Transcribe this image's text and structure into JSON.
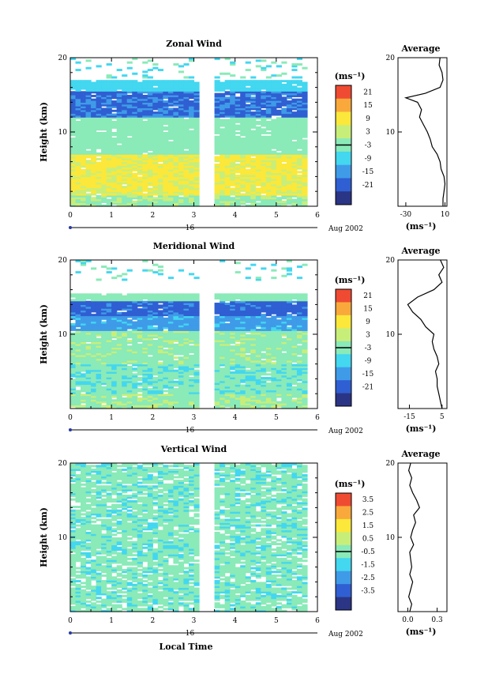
{
  "chart_data": [
    {
      "type": "heatmap",
      "title": "Zonal Wind",
      "ylabel": "Height (km)",
      "xlabel": "",
      "xlim": [
        0,
        6
      ],
      "ylim": [
        0,
        20
      ],
      "x_ticks": [
        "0",
        "1",
        "2",
        "3",
        "4",
        "5",
        "6"
      ],
      "y_ticks": [
        "10",
        "20"
      ],
      "day_label": "16",
      "date_label": "Aug 2002",
      "data_gap_hours": [
        3.13,
        3.47
      ],
      "data_end_hour": 5.67,
      "colorbar": {
        "unit": "(ms⁻¹)",
        "labels": [
          "21",
          "15",
          "9",
          "3",
          "-3",
          "-9",
          "-15",
          "-21"
        ]
      },
      "profile_bands": [
        {
          "from": 0,
          "to": 1.5,
          "value": 5
        },
        {
          "from": 1.5,
          "to": 7,
          "value": 13
        },
        {
          "from": 7,
          "to": 12,
          "value": 3
        },
        {
          "from": 12,
          "to": 15.5,
          "value": -13
        },
        {
          "from": 15.5,
          "to": 17,
          "value": -3
        },
        {
          "from": 17,
          "to": 20,
          "value": null
        }
      ],
      "average": {
        "title": "Average",
        "xlabel": "(ms⁻¹)",
        "xlim": [
          -38,
          12
        ],
        "x_ticks": [
          "-30",
          "10"
        ],
        "y_ticks": [
          "10",
          "20"
        ],
        "height_km": [
          0,
          1,
          2,
          3,
          4,
          5,
          6,
          7,
          8,
          9,
          10,
          11,
          12,
          13,
          14,
          14.6,
          15.2,
          16,
          17,
          18,
          19,
          20
        ],
        "wind_ms": [
          8,
          8,
          9,
          10,
          9,
          6,
          5,
          2,
          -3,
          -5,
          -8,
          -12,
          -16,
          -14,
          -18,
          -30,
          -10,
          5,
          8,
          7,
          4,
          5
        ]
      }
    },
    {
      "type": "heatmap",
      "title": "Meridional Wind",
      "ylabel": "Height (km)",
      "xlabel": "",
      "xlim": [
        0,
        6
      ],
      "ylim": [
        0,
        20
      ],
      "x_ticks": [
        "0",
        "1",
        "2",
        "3",
        "4",
        "5",
        "6"
      ],
      "y_ticks": [
        "10",
        "20"
      ],
      "day_label": "16",
      "date_label": "Aug 2002",
      "data_gap_hours": [
        3.13,
        3.47
      ],
      "data_end_hour": 5.67,
      "colorbar": {
        "unit": "(ms⁻¹)",
        "labels": [
          "21",
          "15",
          "9",
          "3",
          "-3",
          "-9",
          "-15",
          "-21"
        ]
      },
      "profile_bands": [
        {
          "from": 0,
          "to": 2,
          "value": 5
        },
        {
          "from": 2,
          "to": 6,
          "value": 1
        },
        {
          "from": 6,
          "to": 10.5,
          "value": 4
        },
        {
          "from": 10.5,
          "to": 12.5,
          "value": -8
        },
        {
          "from": 12.5,
          "to": 14.5,
          "value": -14
        },
        {
          "from": 14.5,
          "to": 15.5,
          "value": 3
        },
        {
          "from": 15.5,
          "to": 20,
          "value": null
        }
      ],
      "average": {
        "title": "Average",
        "xlabel": "(ms⁻¹)",
        "xlim": [
          -22,
          8
        ],
        "x_ticks": [
          "-15",
          "5"
        ],
        "y_ticks": [
          "10",
          "20"
        ],
        "height_km": [
          0,
          1,
          2,
          3,
          4,
          5,
          6,
          7,
          8,
          9,
          10,
          11,
          12,
          13,
          14,
          15,
          16,
          17,
          18,
          19,
          20
        ],
        "wind_ms": [
          5,
          4,
          3,
          2,
          2,
          1,
          3,
          2,
          0,
          -1,
          0,
          -5,
          -8,
          -13,
          -16,
          -10,
          0,
          5,
          3,
          6,
          4
        ]
      }
    },
    {
      "type": "heatmap",
      "title": "Vertical Wind",
      "ylabel": "Height (km)",
      "xlabel": "Local Time",
      "xlim": [
        0,
        6
      ],
      "ylim": [
        0,
        20
      ],
      "x_ticks": [
        "0",
        "1",
        "2",
        "3",
        "4",
        "5",
        "6"
      ],
      "y_ticks": [
        "10",
        "20"
      ],
      "day_label": "16",
      "date_label": "Aug 2002",
      "data_gap_hours": [
        3.13,
        3.47
      ],
      "data_end_hour": 5.67,
      "colorbar": {
        "unit": "(ms⁻¹)",
        "labels": [
          "3.5",
          "2.5",
          "1.5",
          "0.5",
          "-0.5",
          "-1.5",
          "-2.5",
          "-3.5"
        ]
      },
      "profile_bands": [
        {
          "from": 0,
          "to": 20,
          "value": 0
        }
      ],
      "average": {
        "title": "Average",
        "xlabel": "(ms⁻¹)",
        "xlim": [
          -0.1,
          0.4
        ],
        "x_ticks": [
          "0.0",
          "0.3"
        ],
        "y_ticks": [
          "10",
          "20"
        ],
        "height_km": [
          0,
          1,
          2,
          3,
          4,
          5,
          6,
          7,
          8,
          9,
          10,
          11,
          12,
          13,
          14,
          15,
          16,
          17,
          18,
          19,
          20
        ],
        "wind_ms": [
          0.02,
          0.04,
          0.01,
          0.03,
          0.05,
          0.02,
          0.04,
          0.03,
          0.02,
          0.06,
          0.03,
          0.05,
          0.08,
          0.06,
          0.12,
          0.09,
          0.05,
          0.02,
          0.04,
          0.01,
          0.03
        ]
      }
    }
  ],
  "colors": {
    "scale": [
      "#2b3585",
      "#2f5fd2",
      "#3f9be8",
      "#43d7f0",
      "#8aeab8",
      "#c8ee7a",
      "#fbe83a",
      "#f9a93c",
      "#ef4b33"
    ],
    "missing": "#ffffff"
  }
}
